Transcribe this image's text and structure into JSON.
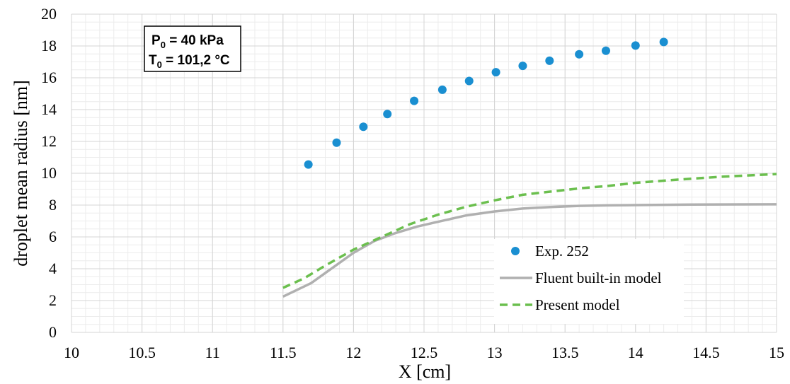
{
  "chart_data": {
    "type": "line",
    "title": "",
    "xlabel": "X [cm]",
    "ylabel": "droplet mean radius [nm]",
    "xlim": [
      10,
      15
    ],
    "ylim": [
      0,
      20
    ],
    "x_ticks": [
      "10",
      "10.5",
      "11",
      "11.5",
      "12",
      "12.5",
      "13",
      "13.5",
      "14",
      "14.5",
      "15"
    ],
    "y_ticks": [
      "0",
      "2",
      "4",
      "6",
      "8",
      "10",
      "12",
      "14",
      "16",
      "18",
      "20"
    ],
    "grid": true,
    "legend_position": "bottom-right",
    "annotation": {
      "line1": {
        "prefix": "P",
        "sub": "0",
        "suffix": " = 40 kPa"
      },
      "line2": {
        "prefix": "T",
        "sub": "0",
        "suffix": " = 101,2 °C"
      }
    },
    "series": [
      {
        "name": "Exp. 252",
        "kind": "scatter",
        "color": "#1a8fd1",
        "points": [
          [
            11.68,
            10.55
          ],
          [
            11.88,
            11.92
          ],
          [
            12.07,
            12.92
          ],
          [
            12.24,
            13.72
          ],
          [
            12.43,
            14.55
          ],
          [
            12.63,
            15.25
          ],
          [
            12.82,
            15.8
          ],
          [
            13.01,
            16.35
          ],
          [
            13.2,
            16.75
          ],
          [
            13.39,
            17.07
          ],
          [
            13.6,
            17.48
          ],
          [
            13.79,
            17.7
          ],
          [
            14.0,
            18.03
          ],
          [
            14.2,
            18.25
          ]
        ]
      },
      {
        "name": "Fluent built-in model",
        "kind": "line",
        "color": "#b0b0b0",
        "dash": "solid",
        "points": [
          [
            11.5,
            2.25
          ],
          [
            11.7,
            3.1
          ],
          [
            11.85,
            4.05
          ],
          [
            12.0,
            5.0
          ],
          [
            12.15,
            5.75
          ],
          [
            12.3,
            6.25
          ],
          [
            12.45,
            6.65
          ],
          [
            12.6,
            6.95
          ],
          [
            12.8,
            7.35
          ],
          [
            13.0,
            7.6
          ],
          [
            13.2,
            7.78
          ],
          [
            13.4,
            7.88
          ],
          [
            13.6,
            7.95
          ],
          [
            13.8,
            7.98
          ],
          [
            14.0,
            8.0
          ],
          [
            14.4,
            8.03
          ],
          [
            15.0,
            8.05
          ]
        ]
      },
      {
        "name": "Present model",
        "kind": "line",
        "color": "#6bbf4e",
        "dash": "dashed",
        "points": [
          [
            11.5,
            2.8
          ],
          [
            11.65,
            3.4
          ],
          [
            11.8,
            4.2
          ],
          [
            12.0,
            5.2
          ],
          [
            12.2,
            6.0
          ],
          [
            12.4,
            6.8
          ],
          [
            12.6,
            7.4
          ],
          [
            12.8,
            7.9
          ],
          [
            13.0,
            8.3
          ],
          [
            13.2,
            8.65
          ],
          [
            13.4,
            8.85
          ],
          [
            13.6,
            9.05
          ],
          [
            13.8,
            9.2
          ],
          [
            14.0,
            9.4
          ],
          [
            14.3,
            9.6
          ],
          [
            14.6,
            9.78
          ],
          [
            15.0,
            9.95
          ]
        ]
      }
    ]
  }
}
